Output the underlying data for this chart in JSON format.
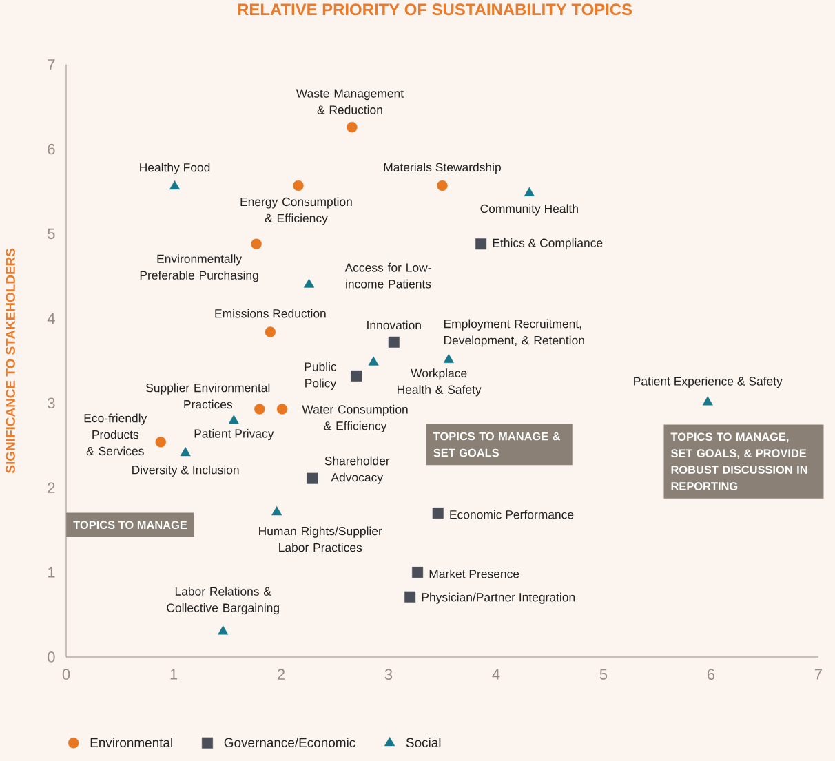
{
  "chart_data": {
    "type": "scatter",
    "title": "RELATIVE PRIORITY OF SUSTAINABILITY TOPICS",
    "ylabel": "SIGNIFICANCE TO STAKEHOLDERS",
    "xlim": [
      0,
      7
    ],
    "ylim": [
      0,
      7
    ],
    "xticks": [
      0,
      1,
      2,
      3,
      4,
      5,
      6,
      7
    ],
    "yticks": [
      0,
      1,
      2,
      3,
      4,
      5,
      6,
      7
    ],
    "legend": "bottom",
    "series": [
      {
        "name": "Environmental",
        "color": "#e87722",
        "marker": "circle",
        "x": [
          2.66,
          2.16,
          3.5,
          1.77,
          1.9,
          1.8,
          2.01,
          0.88
        ],
        "values": [
          6.26,
          5.57,
          5.57,
          4.88,
          3.84,
          2.93,
          2.93,
          2.54
        ]
      },
      {
        "name": "Governance/Economic",
        "color": "#4a4e58",
        "marker": "square",
        "x": [
          3.86,
          3.05,
          2.7,
          2.29,
          3.46,
          3.27,
          3.2
        ],
        "values": [
          4.88,
          3.72,
          3.32,
          2.11,
          1.7,
          1.0,
          0.71
        ]
      },
      {
        "name": "Social",
        "color": "#16788a",
        "marker": "triangle",
        "x": [
          1.01,
          4.31,
          2.26,
          2.86,
          3.56,
          5.97,
          1.56,
          1.11,
          1.96,
          1.46
        ],
        "values": [
          5.56,
          5.48,
          4.4,
          3.48,
          3.51,
          3.01,
          2.79,
          2.41,
          1.71,
          0.3
        ]
      }
    ],
    "annotations": [
      {
        "text": "Waste Management & Reduction",
        "x": 2.66,
        "y": 6.26
      },
      {
        "text": "Healthy Food",
        "x": 1.01,
        "y": 5.56
      },
      {
        "text": "Energy Consumption & Efficiency",
        "x": 2.16,
        "y": 5.57
      },
      {
        "text": "Materials Stewardship",
        "x": 3.5,
        "y": 5.57
      },
      {
        "text": "Community Health",
        "x": 4.31,
        "y": 5.48
      },
      {
        "text": "Ethics & Compliance",
        "x": 3.86,
        "y": 4.88
      },
      {
        "text": "Environmentally Preferable Purchasing",
        "x": 1.77,
        "y": 4.88
      },
      {
        "text": "Access for Low-income Patients",
        "x": 2.26,
        "y": 4.4
      },
      {
        "text": "Emissions Reduction",
        "x": 1.9,
        "y": 3.84
      },
      {
        "text": "Innovation",
        "x": 3.05,
        "y": 3.72
      },
      {
        "text": "Employment Recruitment, Development, & Retention",
        "x": 3.56,
        "y": 3.51
      },
      {
        "text": "Public Policy",
        "x": 2.7,
        "y": 3.32
      },
      {
        "text": "Workplace Health & Safety",
        "x": 2.86,
        "y": 3.48
      },
      {
        "text": "Patient Experience & Safety",
        "x": 5.97,
        "y": 3.01
      },
      {
        "text": "Supplier Environmental Practices",
        "x": 1.8,
        "y": 2.93
      },
      {
        "text": "Water Consumption & Efficiency",
        "x": 2.01,
        "y": 2.93
      },
      {
        "text": "Eco-friendly Products & Services",
        "x": 0.88,
        "y": 2.54
      },
      {
        "text": "Patient Privacy",
        "x": 1.56,
        "y": 2.79
      },
      {
        "text": "Diversity & Inclusion",
        "x": 1.11,
        "y": 2.41
      },
      {
        "text": "Shareholder Advocacy",
        "x": 2.29,
        "y": 2.11
      },
      {
        "text": "Economic Performance",
        "x": 3.46,
        "y": 1.7
      },
      {
        "text": "Human Rights/Supplier Labor Practices",
        "x": 1.96,
        "y": 1.71
      },
      {
        "text": "Market Presence",
        "x": 3.27,
        "y": 1.0
      },
      {
        "text": "Physician/Partner Integration",
        "x": 3.2,
        "y": 0.71
      },
      {
        "text": "Labor Relations & Collective Bargaining",
        "x": 1.46,
        "y": 0.3
      },
      "TOPICS TO MANAGE",
      "TOPICS TO MANAGE & SET GOALS",
      "TOPICS TO MANAGE, SET GOALS, & PROVIDE ROBUST DISCUSSION IN REPORTING"
    ]
  }
}
